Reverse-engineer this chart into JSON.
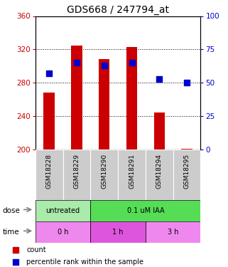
{
  "title": "GDS668 / 247794_at",
  "samples": [
    "GSM18228",
    "GSM18229",
    "GSM18290",
    "GSM18291",
    "GSM18294",
    "GSM18295"
  ],
  "count_values": [
    268,
    325,
    308,
    323,
    244,
    201
  ],
  "count_base": 200,
  "percentile_values": [
    57,
    65,
    63,
    65,
    53,
    50
  ],
  "ylim_left": [
    200,
    360
  ],
  "ylim_right": [
    0,
    100
  ],
  "yticks_left": [
    200,
    240,
    280,
    320,
    360
  ],
  "yticks_right": [
    0,
    25,
    50,
    75,
    100
  ],
  "bar_color": "#cc0000",
  "dot_color": "#0000cc",
  "dot_size": 35,
  "title_fontsize": 10,
  "tick_fontsize": 7.5,
  "sample_fontsize": 6.5,
  "axis_color_left": "#cc0000",
  "axis_color_right": "#0000cc",
  "dose_groups": [
    {
      "label": "untreated",
      "start": 0,
      "end": 2,
      "color": "#aaeaaa"
    },
    {
      "label": "0.1 uM IAA",
      "start": 2,
      "end": 6,
      "color": "#55dd55"
    }
  ],
  "time_groups": [
    {
      "label": "0 h",
      "start": 0,
      "end": 2,
      "color": "#ee88ee"
    },
    {
      "label": "1 h",
      "start": 2,
      "end": 4,
      "color": "#dd55dd"
    },
    {
      "label": "3 h",
      "start": 4,
      "end": 6,
      "color": "#ee88ee"
    }
  ],
  "sample_bg_color": "#cccccc",
  "dose_label": "dose",
  "time_label": "time",
  "legend_count_label": "count",
  "legend_pct_label": "percentile rank within the sample",
  "bar_width": 0.4
}
